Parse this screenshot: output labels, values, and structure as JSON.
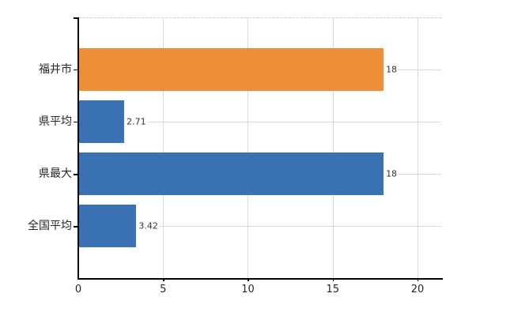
{
  "chart_data": {
    "type": "bar",
    "orientation": "horizontal",
    "title": "",
    "xlabel": "",
    "ylabel": "",
    "categories": [
      "福井市",
      "県平均",
      "県最大",
      "全国平均"
    ],
    "values": [
      18,
      2.71,
      18,
      3.42
    ],
    "value_labels": [
      "18",
      "2.71",
      "18",
      "3.42"
    ],
    "bar_colors": [
      "#EE8E35",
      "#3971B3",
      "#3971B3",
      "#3971B3"
    ],
    "highlight_index": 0,
    "x_tick_labels": [
      "0",
      "5",
      "10",
      "15",
      "20"
    ],
    "x_tick_values": [
      0,
      5,
      10,
      15,
      20
    ],
    "xlim": [
      0,
      21.4
    ],
    "grid": true,
    "legend": false,
    "colors": {
      "highlight_bar": "#EE8E35",
      "bar": "#3971B3",
      "gridline": "#D9D9D9",
      "top_border": "#CBCBCB",
      "axis": "#000000",
      "category_text": "#262626",
      "value_text": "#333333",
      "tick_text": "#262626",
      "background": "#FFFFFF"
    }
  }
}
